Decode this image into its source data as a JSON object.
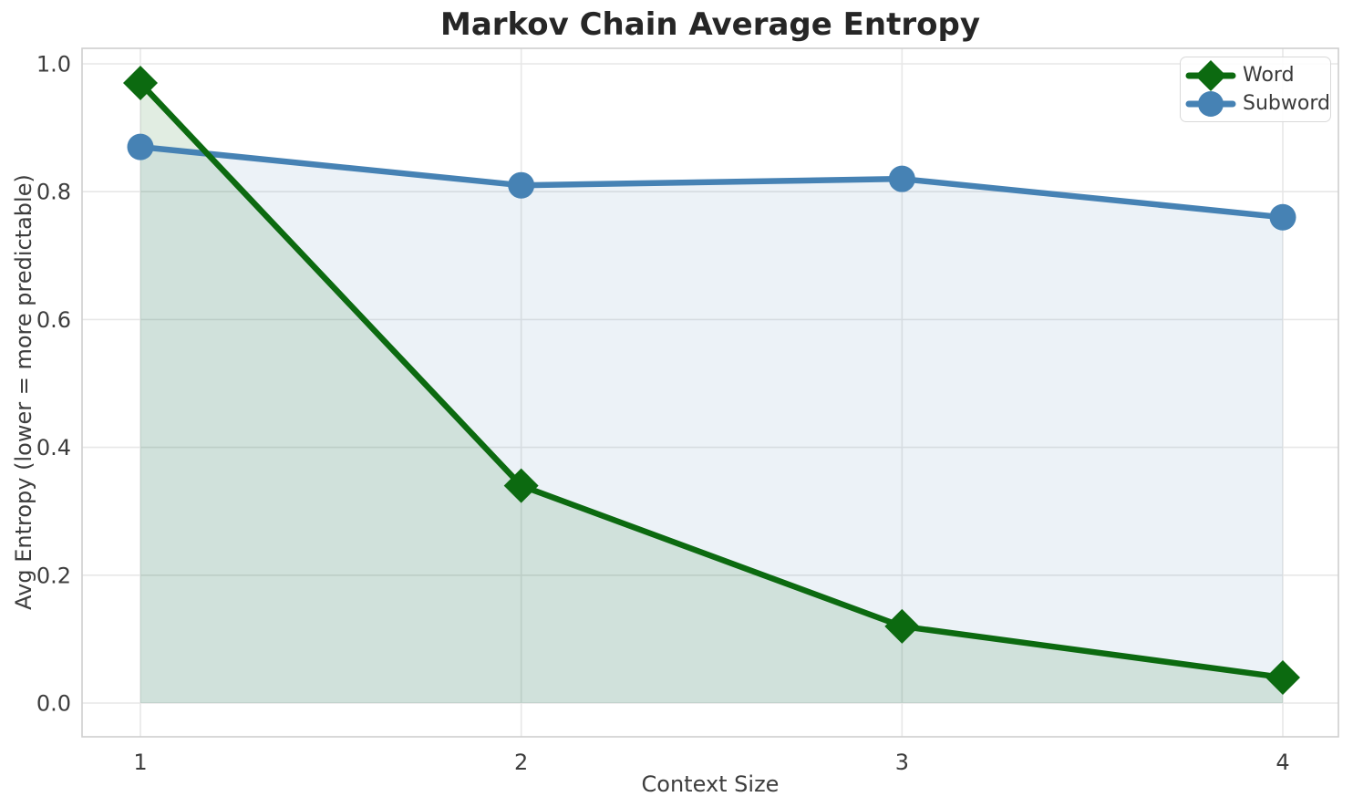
{
  "chart_data": {
    "type": "line",
    "title": "Markov Chain Average Entropy",
    "xlabel": "Context Size",
    "ylabel": "Avg Entropy (lower = more predictable)",
    "x": [
      1,
      2,
      3,
      4
    ],
    "xtick_labels": [
      "1",
      "2",
      "3",
      "4"
    ],
    "ytick_values": [
      0.0,
      0.2,
      0.4,
      0.6,
      0.8,
      1.0
    ],
    "ytick_labels": [
      "0.0",
      "0.2",
      "0.4",
      "0.6",
      "0.8",
      "1.0"
    ],
    "ylim": [
      0.0,
      1.0
    ],
    "grid": true,
    "legend_position": "upper right",
    "series": [
      {
        "name": "Word",
        "values": [
          0.97,
          0.34,
          0.12,
          0.04
        ],
        "color": "#0c6a10",
        "marker": "diamond",
        "fill_to_zero": true,
        "fill_alpha": 0.12
      },
      {
        "name": "Subword",
        "values": [
          0.87,
          0.81,
          0.82,
          0.76
        ],
        "color": "#4682b4",
        "marker": "circle",
        "fill_to_zero": true,
        "fill_alpha": 0.1
      }
    ],
    "colors": {
      "grid": "#e7e7e7",
      "spine": "#cfcfcf",
      "tick_text": "#3d3d3d",
      "title_text": "#262626"
    }
  }
}
